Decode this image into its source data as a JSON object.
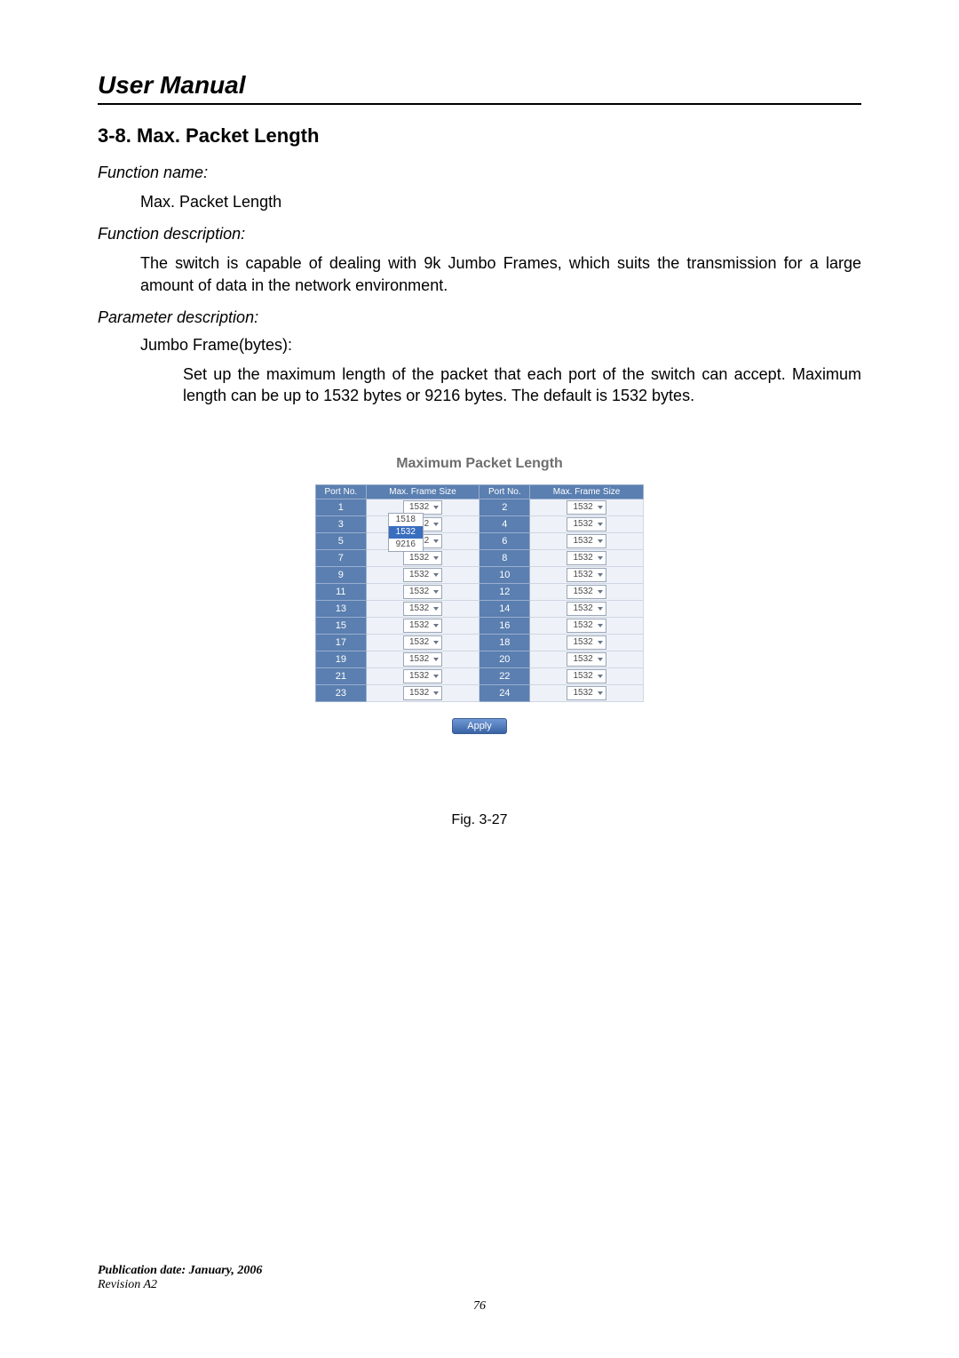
{
  "colors": {
    "page_bg": "#ffffff",
    "text": "#000000",
    "rule": "#000000",
    "table_header_bg": "#5a7fb0",
    "table_header_fg": "#ffffff",
    "table_port_bg": "#5a7fb0",
    "table_val_bg": "#eef2f8",
    "table_border": "#9aaed0",
    "select_border": "#9aa6b8",
    "dropdown_highlight_bg": "#3a6fbf",
    "dropdown_highlight_fg": "#ffffff",
    "apply_btn_top": "#6f98d4",
    "apply_btn_bottom": "#3a63a5",
    "figure_title_color": "#6e6e6e"
  },
  "typography": {
    "header_fontsize_pt": 21,
    "section_title_fontsize_pt": 16,
    "body_fontsize_pt": 13,
    "figure_title_fontsize_pt": 12,
    "table_fontsize_pt": 8,
    "footer_fontsize_pt": 10
  },
  "header": {
    "title": "User Manual"
  },
  "section": {
    "number_title": "3-8. Max. Packet Length",
    "fn_name_label": "Function name:",
    "fn_name_value": "Max. Packet Length",
    "fn_desc_label": "Function description:",
    "fn_desc_value": "The switch is capable of dealing with 9k Jumbo Frames, which suits the transmission for a large amount of data in the network environment.",
    "param_desc_label": "Parameter description:",
    "param_name": "Jumbo Frame(bytes):",
    "param_text": "Set up the maximum length of the packet that each port of the switch can accept. Maximum length can be up to 1532 bytes or 9216 bytes. The default is 1532 bytes."
  },
  "figure": {
    "title": "Maximum Packet Length",
    "caption": "Fig. 3-27",
    "apply_label": "Apply",
    "columns": [
      "Port No.",
      "Max. Frame Size",
      "Port No.",
      "Max. Frame Size"
    ],
    "dropdown_options": [
      "1518",
      "1532",
      "9216"
    ],
    "dropdown_highlight_index": 1,
    "port_open_dropdown": 1,
    "rows": [
      {
        "left_port": 1,
        "left_val": "1532",
        "right_port": 2,
        "right_val": "1532"
      },
      {
        "left_port": 3,
        "left_val": "1532",
        "right_port": 4,
        "right_val": "1532"
      },
      {
        "left_port": 5,
        "left_val": "1532",
        "right_port": 6,
        "right_val": "1532"
      },
      {
        "left_port": 7,
        "left_val": "1532",
        "right_port": 8,
        "right_val": "1532"
      },
      {
        "left_port": 9,
        "left_val": "1532",
        "right_port": 10,
        "right_val": "1532"
      },
      {
        "left_port": 11,
        "left_val": "1532",
        "right_port": 12,
        "right_val": "1532"
      },
      {
        "left_port": 13,
        "left_val": "1532",
        "right_port": 14,
        "right_val": "1532"
      },
      {
        "left_port": 15,
        "left_val": "1532",
        "right_port": 16,
        "right_val": "1532"
      },
      {
        "left_port": 17,
        "left_val": "1532",
        "right_port": 18,
        "right_val": "1532"
      },
      {
        "left_port": 19,
        "left_val": "1532",
        "right_port": 20,
        "right_val": "1532"
      },
      {
        "left_port": 21,
        "left_val": "1532",
        "right_port": 22,
        "right_val": "1532"
      },
      {
        "left_port": 23,
        "left_val": "1532",
        "right_port": 24,
        "right_val": "1532"
      }
    ]
  },
  "footer": {
    "publication": "Publication date: January, 2006",
    "revision": "Revision A2",
    "page_number": "76"
  }
}
